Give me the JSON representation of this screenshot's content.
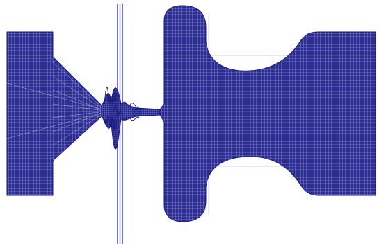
{
  "figure": {
    "mesh_color": "#1a1a80",
    "mesh_fill": "#2b2b9a",
    "background": "#ffffff"
  }
}
